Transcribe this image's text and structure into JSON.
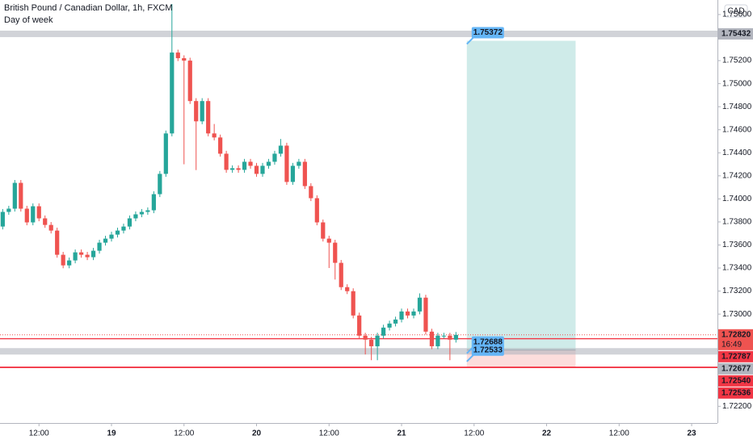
{
  "chart_data": {
    "type": "candlestick",
    "title": "British Pound / Canadian Dollar, 1h, FXCM",
    "subtitle": "Day of week",
    "currency": "CAD",
    "up_color": "#26a69a",
    "down_color": "#ef5350",
    "x": [
      -18,
      -17,
      -16,
      -15,
      -14,
      -13,
      -12,
      -11,
      -10,
      -9,
      -8,
      -7,
      -6,
      -5,
      -4,
      -3,
      -2,
      -1,
      0,
      1,
      2,
      3,
      4,
      5,
      6,
      7,
      8,
      9,
      10,
      11,
      12,
      13,
      14,
      15,
      16,
      17,
      18,
      19,
      20,
      21,
      22,
      23,
      24,
      25,
      26,
      27,
      28,
      29,
      30,
      31,
      32,
      33,
      34,
      35,
      36,
      37,
      38,
      39,
      40,
      41,
      42,
      43,
      44,
      45,
      46,
      47,
      48,
      49,
      50,
      51,
      52,
      53,
      54,
      55,
      56,
      57
    ],
    "open": [
      1.7376,
      1.73887,
      1.73915,
      1.74139,
      1.73915,
      1.73796,
      1.73936,
      1.73831,
      1.73774,
      1.73725,
      1.73515,
      1.73423,
      1.73466,
      1.73536,
      1.73515,
      1.73494,
      1.7355,
      1.7362,
      1.73655,
      1.7369,
      1.73725,
      1.7376,
      1.73831,
      1.73866,
      1.73887,
      1.73901,
      1.74041,
      1.74217,
      1.74568,
      1.7527,
      1.75221,
      1.752,
      1.74849,
      1.74673,
      1.74849,
      1.74568,
      1.74533,
      1.74392,
      1.74252,
      1.74266,
      1.74252,
      1.74322,
      1.74287,
      1.74217,
      1.74287,
      1.74322,
      1.74392,
      1.74462,
      1.74147,
      1.74287,
      1.74322,
      1.74111,
      1.74006,
      1.73796,
      1.73655,
      1.7362,
      1.73445,
      1.73234,
      1.73199,
      1.72988,
      1.72813,
      1.72778,
      1.72721,
      1.72813,
      1.72883,
      1.72918,
      1.72953,
      1.73023,
      1.72988,
      1.73023,
      1.73143,
      1.72848,
      1.72721,
      1.72813,
      1.72813,
      1.72778
    ],
    "high": [
      1.73912,
      1.7394,
      1.74164,
      1.74164,
      1.7394,
      1.73961,
      1.73961,
      1.73856,
      1.73799,
      1.7375,
      1.7354,
      1.73491,
      1.73561,
      1.73561,
      1.7354,
      1.73575,
      1.73645,
      1.7368,
      1.73715,
      1.7375,
      1.73785,
      1.73856,
      1.73891,
      1.73912,
      1.73926,
      1.74066,
      1.74242,
      1.74593,
      1.75691,
      1.75295,
      1.75246,
      1.75225,
      1.74874,
      1.74874,
      1.74874,
      1.7465,
      1.74558,
      1.74417,
      1.74291,
      1.74291,
      1.74347,
      1.74347,
      1.74312,
      1.74312,
      1.74347,
      1.74417,
      1.7452,
      1.74487,
      1.74312,
      1.74347,
      1.74347,
      1.74136,
      1.74031,
      1.73821,
      1.7368,
      1.73645,
      1.7347,
      1.73259,
      1.73224,
      1.73013,
      1.72838,
      1.72803,
      1.72838,
      1.72908,
      1.72943,
      1.72978,
      1.73048,
      1.73048,
      1.73048,
      1.7318,
      1.73168,
      1.72873,
      1.72838,
      1.72838,
      1.72838,
      1.72845
    ],
    "low": [
      1.73735,
      1.73862,
      1.7389,
      1.7389,
      1.73771,
      1.73771,
      1.73806,
      1.73749,
      1.737,
      1.7349,
      1.73398,
      1.73398,
      1.73441,
      1.7349,
      1.73469,
      1.73469,
      1.73525,
      1.73595,
      1.7363,
      1.73665,
      1.737,
      1.73735,
      1.73806,
      1.73841,
      1.73862,
      1.73876,
      1.74016,
      1.74192,
      1.74543,
      1.75196,
      1.743,
      1.74824,
      1.7425,
      1.74648,
      1.74543,
      1.74508,
      1.74367,
      1.74227,
      1.74227,
      1.74227,
      1.74227,
      1.74262,
      1.74192,
      1.74192,
      1.74262,
      1.74297,
      1.74367,
      1.74122,
      1.74122,
      1.74262,
      1.74086,
      1.73981,
      1.73771,
      1.7363,
      1.734,
      1.733,
      1.73209,
      1.73174,
      1.72963,
      1.72788,
      1.7265,
      1.726,
      1.726,
      1.72788,
      1.72858,
      1.72893,
      1.72928,
      1.72963,
      1.72963,
      1.72998,
      1.72823,
      1.72696,
      1.72696,
      1.72788,
      1.726,
      1.72753
    ],
    "close": [
      1.73887,
      1.73915,
      1.74139,
      1.73915,
      1.73796,
      1.73936,
      1.73831,
      1.73774,
      1.73725,
      1.73515,
      1.73423,
      1.73466,
      1.73536,
      1.73515,
      1.73494,
      1.7355,
      1.7362,
      1.73655,
      1.7369,
      1.73725,
      1.7376,
      1.73831,
      1.73866,
      1.73887,
      1.73901,
      1.74041,
      1.74217,
      1.74568,
      1.7527,
      1.75221,
      1.752,
      1.74849,
      1.74673,
      1.74849,
      1.74568,
      1.74533,
      1.74392,
      1.74252,
      1.74266,
      1.74252,
      1.74322,
      1.74287,
      1.74217,
      1.74287,
      1.74322,
      1.74392,
      1.74462,
      1.74147,
      1.74287,
      1.74322,
      1.74111,
      1.74006,
      1.73796,
      1.73655,
      1.7362,
      1.73445,
      1.73234,
      1.73199,
      1.72988,
      1.72813,
      1.72778,
      1.72721,
      1.72813,
      1.72883,
      1.72918,
      1.72953,
      1.73023,
      1.72988,
      1.73023,
      1.73143,
      1.72848,
      1.72721,
      1.72813,
      1.72813,
      1.72778,
      1.7282
    ],
    "xlim": [
      -18.45,
      100.27
    ],
    "xticks": [
      {
        "value": -12,
        "label": "12:00"
      },
      {
        "value": 0,
        "label": "19"
      },
      {
        "value": 12,
        "label": "12:00"
      },
      {
        "value": 24,
        "label": "20"
      },
      {
        "value": 36,
        "label": "12:00"
      },
      {
        "value": 48,
        "label": "21"
      },
      {
        "value": 60,
        "label": "12:00"
      },
      {
        "value": 72,
        "label": "22"
      },
      {
        "value": 84,
        "label": "12:00"
      },
      {
        "value": 96,
        "label": "23"
      }
    ],
    "ylim": [
      1.72055,
      1.75726
    ],
    "yticks": [
      {
        "value": 1.756,
        "label": "1.75600"
      },
      {
        "value": 1.752,
        "label": "1.75200"
      },
      {
        "value": 1.75,
        "label": "1.75000"
      },
      {
        "value": 1.748,
        "label": "1.74800"
      },
      {
        "value": 1.746,
        "label": "1.74600"
      },
      {
        "value": 1.744,
        "label": "1.74400"
      },
      {
        "value": 1.742,
        "label": "1.74200"
      },
      {
        "value": 1.74,
        "label": "1.74000"
      },
      {
        "value": 1.738,
        "label": "1.73800"
      },
      {
        "value": 1.736,
        "label": "1.73600"
      },
      {
        "value": 1.734,
        "label": "1.73400"
      },
      {
        "value": 1.732,
        "label": "1.73200"
      },
      {
        "value": 1.73,
        "label": "1.73000"
      },
      {
        "value": 1.722,
        "label": "1.72200"
      }
    ],
    "price_lines": [
      {
        "value": 1.75432,
        "label": "1.75432",
        "color": "#b2b5be",
        "style": "band"
      },
      {
        "value": 1.7282,
        "label": "1.72820",
        "color": "#ef5350",
        "style": "dotted",
        "countdown": "16:49"
      },
      {
        "value": 1.72787,
        "label": "1.72787",
        "color": "#f23645",
        "style": "solid"
      },
      {
        "value": 1.72677,
        "label": "1.72677",
        "color": "#b2b5be",
        "style": "band"
      },
      {
        "value": 1.7254,
        "label": "1.72540",
        "color": "#f23645",
        "style": "solid"
      },
      {
        "value": 1.72536,
        "label": "1.72536",
        "color": "#f23645",
        "style": "solid"
      }
    ],
    "position": {
      "start": 58.8,
      "end": 76.8,
      "target": {
        "value": 1.75372,
        "label": "1.75372"
      },
      "entry": {
        "value": 1.72688,
        "label": "1.72688"
      },
      "stop": {
        "value": 1.72533,
        "label": "1.72533"
      }
    }
  }
}
